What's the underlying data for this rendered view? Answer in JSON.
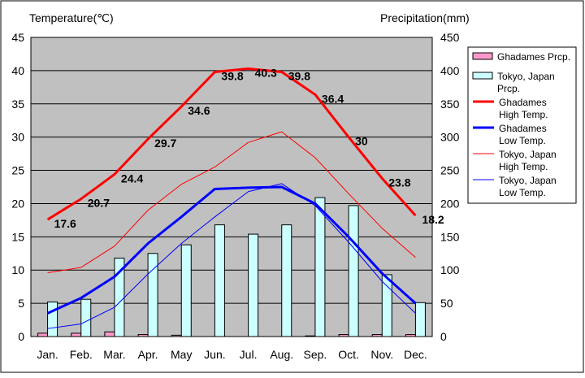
{
  "chart_data": {
    "type": "bar+line",
    "left_axis_title": "Temperature(℃)",
    "right_axis_title": "Precipitation(mm)",
    "categories": [
      "Jan.",
      "Feb.",
      "Mar.",
      "Apr.",
      "May",
      "Jun.",
      "Jul.",
      "Aug.",
      "Sep.",
      "Oct.",
      "Nov.",
      "Dec."
    ],
    "y_left": {
      "min": 0,
      "max": 45,
      "ticks": [
        "0",
        "5",
        "10",
        "15",
        "20",
        "25",
        "30",
        "35",
        "40",
        "45"
      ]
    },
    "y_right": {
      "min": 0,
      "max": 450,
      "ticks": [
        "0",
        "50",
        "100",
        "150",
        "200",
        "250",
        "300",
        "350",
        "400",
        "450"
      ]
    },
    "grid": "horizontal",
    "legend_position": "right",
    "bar_series": [
      {
        "name": "Ghadames Prcp.",
        "color": "#ff99cc",
        "values": [
          5,
          5,
          7,
          3,
          2,
          0,
          0,
          0,
          1,
          3,
          3,
          3
        ]
      },
      {
        "name": "Tokyo, Japan Prcp.",
        "color": "#ccffff",
        "values": [
          52,
          56,
          118,
          125,
          138,
          168,
          154,
          168,
          209,
          197,
          93,
          51
        ]
      }
    ],
    "line_series": [
      {
        "name": "Ghadames High Temp.",
        "color": "#ff0000",
        "width": 3,
        "values": [
          17.6,
          20.7,
          24.4,
          29.7,
          34.6,
          39.8,
          40.3,
          39.8,
          36.4,
          30,
          23.8,
          18.2
        ],
        "labels": [
          "17.6",
          "20.7",
          "24.4",
          "29.7",
          "34.6",
          "39.8",
          "40.3",
          "39.8",
          "36.4",
          "30",
          "23.8",
          "18.2"
        ]
      },
      {
        "name": "Ghadames Low Temp.",
        "color": "#0000ff",
        "width": 3,
        "values": [
          3.5,
          5.8,
          9.0,
          14.0,
          18.0,
          22.2,
          22.4,
          22.5,
          20.0,
          15.0,
          9.5,
          5.0
        ]
      },
      {
        "name": "Tokyo, Japan High Temp.",
        "color": "#ff0000",
        "width": 1,
        "values": [
          9.6,
          10.4,
          13.6,
          19.0,
          22.9,
          25.5,
          29.2,
          30.8,
          26.9,
          21.5,
          16.3,
          11.9
        ]
      },
      {
        "name": "Tokyo, Japan Low Temp.",
        "color": "#0000ff",
        "width": 1,
        "values": [
          1.2,
          1.9,
          4.4,
          9.4,
          14.0,
          18.0,
          21.8,
          23.0,
          19.7,
          14.2,
          8.3,
          3.5
        ]
      }
    ],
    "legend": [
      {
        "kind": "swatch",
        "color": "#ff99cc",
        "lines": [
          "Ghadames Prcp."
        ]
      },
      {
        "kind": "swatch",
        "color": "#ccffff",
        "lines": [
          "Tokyo, Japan",
          "Prcp."
        ]
      },
      {
        "kind": "line",
        "color": "#ff0000",
        "width": 3,
        "lines": [
          "Ghadames",
          "High Temp."
        ]
      },
      {
        "kind": "line",
        "color": "#0000ff",
        "width": 3,
        "lines": [
          "Ghadames",
          "Low Temp."
        ]
      },
      {
        "kind": "line",
        "color": "#ff0000",
        "width": 1,
        "lines": [
          "Tokyo, Japan",
          "High Temp."
        ]
      },
      {
        "kind": "line",
        "color": "#0000ff",
        "width": 1,
        "lines": [
          "Tokyo, Japan",
          "Low Temp."
        ]
      }
    ],
    "colors": {
      "plot_bg": "#c0c0c0",
      "bar_stroke": "#000000"
    }
  }
}
